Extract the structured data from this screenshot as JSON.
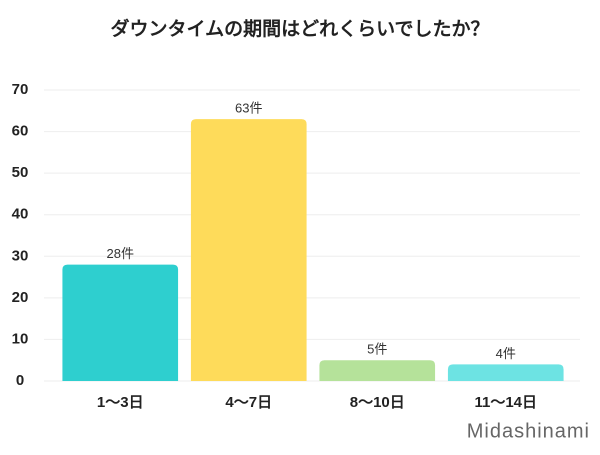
{
  "chart_data": {
    "type": "bar",
    "title": "ダウンタイムの期間はどれくらいでしたか？",
    "categories": [
      "1〜3日",
      "4〜7日",
      "8〜10日",
      "11〜14日"
    ],
    "values": [
      28,
      63,
      5,
      4
    ],
    "value_labels": [
      "28件",
      "63件",
      "5件",
      "4件"
    ],
    "colors": [
      "#2ecfcf",
      "#fedb5a",
      "#b5e29a",
      "#6de3e3"
    ],
    "ylim": [
      0,
      70
    ],
    "yticks": [
      0,
      10,
      20,
      30,
      40,
      50,
      60,
      70
    ],
    "grid": true,
    "watermark": "Midashinami"
  }
}
